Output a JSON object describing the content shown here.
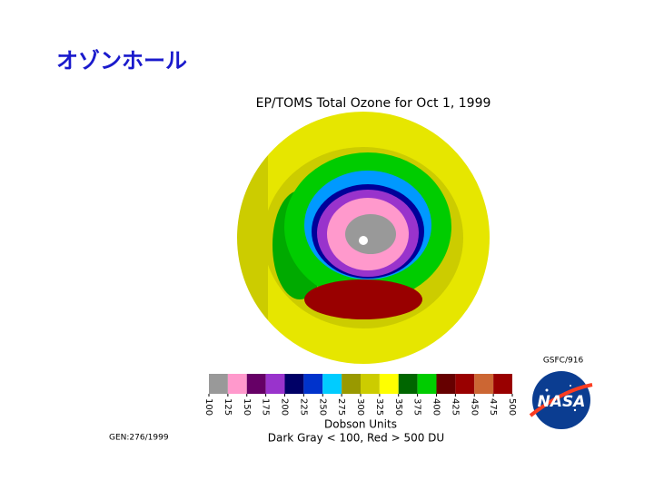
{
  "slide": {
    "title": "オゾンホール"
  },
  "map": {
    "title": "EP/TOMS Total Ozone for Oct  1, 1999"
  },
  "colorbar": {
    "ticks": [
      100,
      125,
      150,
      175,
      200,
      225,
      250,
      275,
      300,
      325,
      350,
      375,
      400,
      425,
      450,
      475,
      500
    ],
    "colors": [
      "#999999",
      "#ff99cc",
      "#660066",
      "#9933cc",
      "#000066",
      "#0033cc",
      "#00ccff",
      "#999900",
      "#cccc00",
      "#ffff00",
      "#006600",
      "#00cc00",
      "#660000",
      "#990000",
      "#cc6633",
      "#990000"
    ],
    "unit_label": "Dobson Units",
    "note": "Dark Gray < 100, Red > 500 DU"
  },
  "credit": "GSFC/916",
  "gen": "GEN:276/1999",
  "logo": {
    "text": "NASA"
  }
}
